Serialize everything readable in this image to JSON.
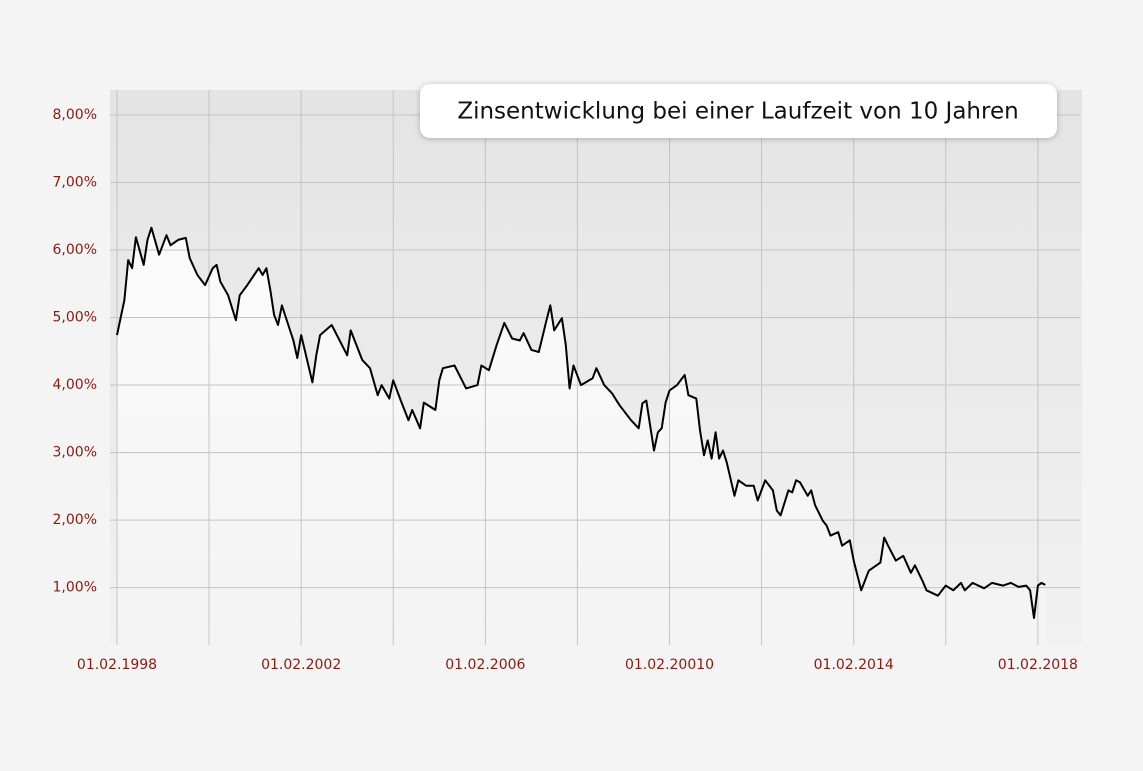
{
  "chart_data": {
    "type": "line",
    "title": "Zinsentwicklung bei einer Laufzeit von 10 Jahren",
    "x": [
      "1998-02-01",
      "1998-04-01",
      "1998-05-01",
      "1998-06-01",
      "1998-07-01",
      "1998-09-01",
      "1998-10-01",
      "1998-11-01",
      "1999-01-01",
      "1999-03-01",
      "1999-04-01",
      "1999-06-01",
      "1999-08-01",
      "1999-09-01",
      "1999-11-01",
      "2000-01-01",
      "2000-03-01",
      "2000-04-01",
      "2000-05-01",
      "2000-07-01",
      "2000-09-01",
      "2000-10-01",
      "2000-12-01",
      "2001-03-01",
      "2001-04-01",
      "2001-05-01",
      "2001-06-01",
      "2001-07-01",
      "2001-08-01",
      "2001-09-01",
      "2001-12-01",
      "2002-01-01",
      "2002-02-01",
      "2002-05-01",
      "2002-06-01",
      "2002-07-01",
      "2002-10-01",
      "2003-02-01",
      "2003-03-01",
      "2003-06-01",
      "2003-08-01",
      "2003-10-01",
      "2003-11-01",
      "2004-01-01",
      "2004-02-01",
      "2004-04-01",
      "2004-06-01",
      "2004-07-01",
      "2004-09-01",
      "2004-10-01",
      "2005-01-01",
      "2005-02-01",
      "2005-03-01",
      "2005-06-01",
      "2005-09-01",
      "2005-12-01",
      "2006-01-01",
      "2006-03-01",
      "2006-05-01",
      "2006-07-01",
      "2006-09-01",
      "2006-11-01",
      "2006-12-01",
      "2007-02-01",
      "2007-04-01",
      "2007-06-01",
      "2007-07-01",
      "2007-08-01",
      "2007-10-01",
      "2007-11-01",
      "2007-12-01",
      "2008-01-01",
      "2008-03-01",
      "2008-06-01",
      "2008-07-01",
      "2008-09-01",
      "2008-11-01",
      "2009-01-01",
      "2009-04-01",
      "2009-06-01",
      "2009-07-01",
      "2009-08-01",
      "2009-10-01",
      "2009-11-01",
      "2009-12-01",
      "2010-01-01",
      "2010-02-01",
      "2010-04-01",
      "2010-06-01",
      "2010-07-01",
      "2010-09-01",
      "2010-10-01",
      "2010-11-01",
      "2010-12-01",
      "2011-01-01",
      "2011-02-01",
      "2011-03-01",
      "2011-04-01",
      "2011-05-01",
      "2011-07-01",
      "2011-08-01",
      "2011-10-01",
      "2011-12-01",
      "2012-01-01",
      "2012-03-01",
      "2012-05-01",
      "2012-06-01",
      "2012-07-01",
      "2012-09-01",
      "2012-10-01",
      "2012-11-01",
      "2012-12-01",
      "2013-02-01",
      "2013-03-01",
      "2013-04-01",
      "2013-06-01",
      "2013-07-01",
      "2013-08-01",
      "2013-10-01",
      "2013-11-01",
      "2014-01-01",
      "2014-02-01",
      "2014-04-01",
      "2014-06-01",
      "2014-09-01",
      "2014-10-01",
      "2014-11-01",
      "2015-01-01",
      "2015-03-01",
      "2015-05-01",
      "2015-06-01",
      "2015-08-01",
      "2015-09-01",
      "2015-12-01",
      "2016-02-01",
      "2016-04-01",
      "2016-06-01",
      "2016-07-01",
      "2016-09-01",
      "2016-12-01",
      "2017-02-01",
      "2017-05-01",
      "2017-07-01",
      "2017-09-01",
      "2017-11-01",
      "2017-12-01",
      "2018-01-01",
      "2018-02-01",
      "2018-03-01",
      "2018-04-01"
    ],
    "series": [
      {
        "name": "Zins",
        "color": "#000000",
        "values": [
          4.74,
          5.26,
          5.85,
          5.73,
          6.19,
          5.78,
          6.15,
          6.33,
          5.93,
          6.22,
          6.07,
          6.15,
          6.18,
          5.88,
          5.63,
          5.48,
          5.73,
          5.78,
          5.53,
          5.33,
          4.96,
          5.33,
          5.48,
          5.73,
          5.63,
          5.73,
          5.41,
          5.04,
          4.89,
          5.18,
          4.66,
          4.4,
          4.74,
          4.04,
          4.44,
          4.74,
          4.89,
          4.44,
          4.81,
          4.37,
          4.25,
          3.85,
          4.0,
          3.8,
          4.07,
          3.77,
          3.48,
          3.63,
          3.36,
          3.74,
          3.63,
          4.07,
          4.25,
          4.29,
          3.95,
          4.0,
          4.29,
          4.22,
          4.59,
          4.92,
          4.69,
          4.66,
          4.77,
          4.52,
          4.49,
          4.96,
          5.18,
          4.81,
          4.99,
          4.59,
          3.95,
          4.29,
          4.0,
          4.1,
          4.25,
          4.0,
          3.88,
          3.7,
          3.48,
          3.36,
          3.73,
          3.77,
          3.03,
          3.3,
          3.36,
          3.74,
          3.92,
          4.0,
          4.15,
          3.85,
          3.8,
          3.33,
          2.96,
          3.18,
          2.91,
          3.3,
          2.91,
          3.03,
          2.85,
          2.36,
          2.59,
          2.51,
          2.51,
          2.29,
          2.59,
          2.44,
          2.14,
          2.07,
          2.44,
          2.41,
          2.59,
          2.56,
          2.36,
          2.44,
          2.22,
          1.99,
          1.92,
          1.77,
          1.82,
          1.62,
          1.7,
          1.4,
          0.96,
          1.25,
          1.37,
          1.74,
          1.62,
          1.4,
          1.47,
          1.22,
          1.33,
          1.1,
          0.96,
          0.88,
          1.03,
          0.96,
          1.07,
          0.96,
          1.07,
          0.99,
          1.07,
          1.03,
          1.07,
          1.01,
          1.03,
          0.96,
          0.55,
          1.03,
          1.07,
          1.04
        ]
      }
    ],
    "xlim": [
      "1998-02-01",
      "2019-01-01"
    ],
    "xticks": [
      {
        "value": "1998-02-01",
        "label": "01.02.1998"
      },
      {
        "value": "2000-02-01",
        "label": null
      },
      {
        "value": "2002-02-01",
        "label": "01.02.2002"
      },
      {
        "value": "2004-02-01",
        "label": null
      },
      {
        "value": "2006-02-01",
        "label": "01.02.2006"
      },
      {
        "value": "2008-02-01",
        "label": null
      },
      {
        "value": "2010-02-01",
        "label": "01.02.20010"
      },
      {
        "value": "2012-02-01",
        "label": null
      },
      {
        "value": "2014-02-01",
        "label": "01.02.2014"
      },
      {
        "value": "2016-02-01",
        "label": null
      },
      {
        "value": "2018-02-01",
        "label": "01.02.2018"
      }
    ],
    "ylim": [
      0.15,
      8.37
    ],
    "yticks": [
      {
        "value": 1,
        "label": "1,00%"
      },
      {
        "value": 2,
        "label": "2,00%"
      },
      {
        "value": 3,
        "label": "3,00%"
      },
      {
        "value": 4,
        "label": "4,00%"
      },
      {
        "value": 5,
        "label": "5,00%"
      },
      {
        "value": 6,
        "label": "6,00%"
      },
      {
        "value": 7,
        "label": "7,00%"
      },
      {
        "value": 8,
        "label": "8,00%"
      }
    ],
    "grid": true
  }
}
